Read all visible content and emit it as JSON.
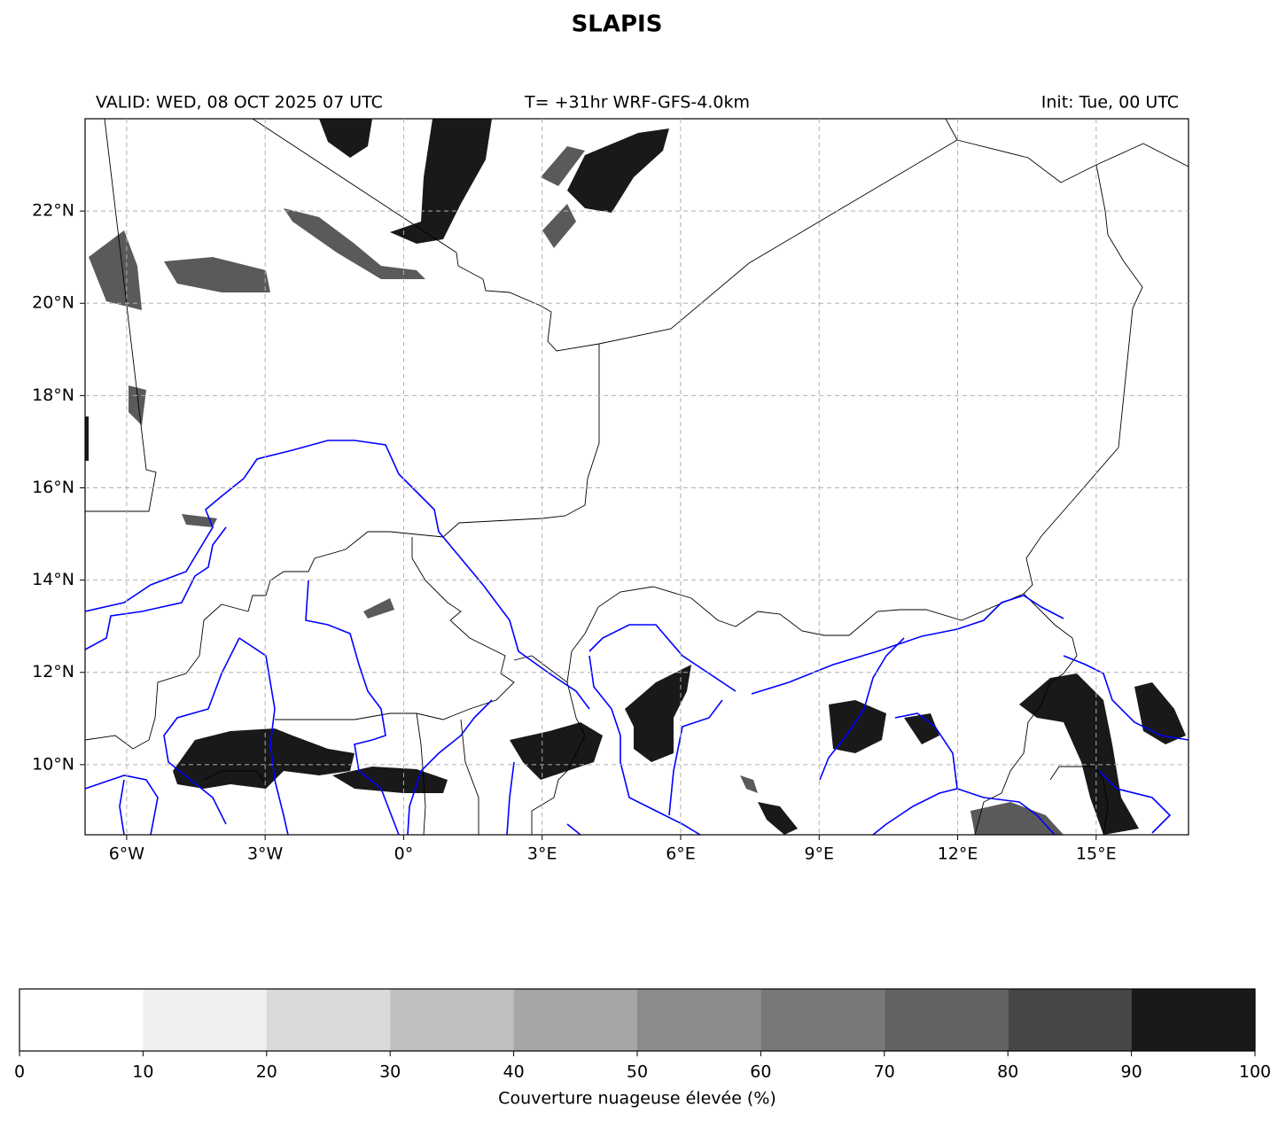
{
  "title": "SLAPIS",
  "valid": "VALID: WED, 08 OCT 2025 07 UTC",
  "run": "T= +31hr WRF-GFS-4.0km",
  "init": "Init: Tue, 00 UTC",
  "map": {
    "xlim": [
      -6.9,
      17
    ],
    "ylim": [
      8.48,
      24
    ],
    "xticks": [
      {
        "value": -6,
        "label": "6°W"
      },
      {
        "value": -3,
        "label": "3°W"
      },
      {
        "value": 0,
        "label": "0°"
      },
      {
        "value": 3,
        "label": "3°E"
      },
      {
        "value": 6,
        "label": "6°E"
      },
      {
        "value": 9,
        "label": "9°E"
      },
      {
        "value": 12,
        "label": "12°E"
      },
      {
        "value": 15,
        "label": "15°E"
      }
    ],
    "yticks": [
      {
        "value": 10,
        "label": "10°N"
      },
      {
        "value": 12,
        "label": "12°N"
      },
      {
        "value": 14,
        "label": "14°N"
      },
      {
        "value": 16,
        "label": "16°N"
      },
      {
        "value": 18,
        "label": "18°N"
      },
      {
        "value": 20,
        "label": "20°N"
      },
      {
        "value": 22,
        "label": "22°N"
      }
    ],
    "grid": true
  },
  "colorbar": {
    "label": "Couverture nuageuse élevée (%)",
    "bounds": [
      0,
      10,
      20,
      30,
      40,
      50,
      60,
      70,
      80,
      90,
      100
    ],
    "colors": [
      "#ffffff",
      "#f0f0f0",
      "#d9d9d9",
      "#bfbfbf",
      "#a6a6a6",
      "#8c8c8c",
      "#787878",
      "#626262",
      "#464646",
      "#191919"
    ]
  }
}
